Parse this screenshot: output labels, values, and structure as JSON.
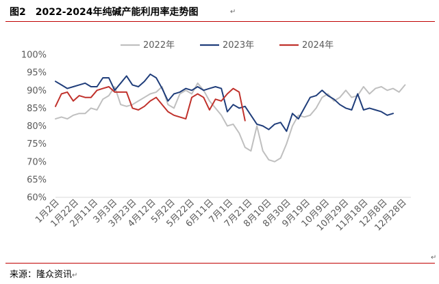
{
  "title": {
    "number": "图2",
    "text": "2022-2024年纯碱产能利用率走势图"
  },
  "source": "来源：隆众资讯",
  "chart_data": {
    "type": "line",
    "title": "2022-2024年纯碱产能利用率走势图",
    "xlabel": "",
    "ylabel": "",
    "ylim": [
      60,
      100
    ],
    "y_ticks": [
      "60%",
      "65%",
      "70%",
      "75%",
      "80%",
      "85%",
      "90%",
      "95%",
      "100%"
    ],
    "x_tick_labels": [
      "1月2日",
      "1月22日",
      "2月11日",
      "3月3日",
      "3月23日",
      "4月12日",
      "5月2日",
      "5月22日",
      "6月11日",
      "7月1日",
      "7月21日",
      "8月10日",
      "8月30日",
      "9月19日",
      "10月9日",
      "10月29日",
      "11月18日",
      "12月8日",
      "12月28日"
    ],
    "legend_position": "top",
    "grid": false,
    "series": [
      {
        "name": "2022年",
        "color": "#bfbfbf",
        "values": [
          82,
          82.5,
          82,
          83,
          83.5,
          83.5,
          85,
          84.5,
          87.5,
          88.5,
          91,
          86,
          85.5,
          86,
          87,
          88,
          89,
          89.5,
          91,
          86,
          85,
          89,
          90,
          89,
          92,
          90,
          87,
          85,
          83,
          80,
          80.5,
          78,
          74,
          73,
          80,
          73,
          70.5,
          70,
          71,
          75,
          80,
          83,
          82.5,
          83,
          85,
          88,
          89,
          87,
          88,
          90,
          88,
          88.5,
          91,
          89,
          90.5,
          91,
          90,
          90.5,
          89.5,
          91.5
        ]
      },
      {
        "name": "2023年",
        "color": "#1f3d7a",
        "values": [
          92.5,
          91.5,
          90.5,
          91,
          91.5,
          92,
          91,
          91,
          93.5,
          93.5,
          90,
          92,
          94,
          91.5,
          91,
          92.5,
          94.5,
          93.5,
          90.5,
          87,
          89,
          89.5,
          90.5,
          90,
          91,
          90,
          90.5,
          91,
          90.5,
          84,
          86,
          85,
          85.5,
          83,
          80.5,
          80,
          79,
          80.5,
          81,
          78.5,
          83.5,
          82,
          85,
          88,
          88.5,
          90,
          88.5,
          87.5,
          86,
          85,
          84.5,
          89,
          84.5,
          85,
          84.5,
          84,
          83,
          83.5
        ]
      },
      {
        "name": "2024年",
        "color": "#c0312b",
        "values": [
          85.5,
          89,
          89.5,
          87,
          88.5,
          88,
          88,
          90,
          90.5,
          91,
          89.5,
          89.5,
          89.5,
          85,
          84.5,
          85.5,
          87,
          88,
          86,
          84,
          83,
          82.5,
          82,
          88,
          89,
          88,
          84.5,
          87.5,
          87,
          89,
          90.5,
          89.5,
          81.5
        ]
      }
    ]
  }
}
